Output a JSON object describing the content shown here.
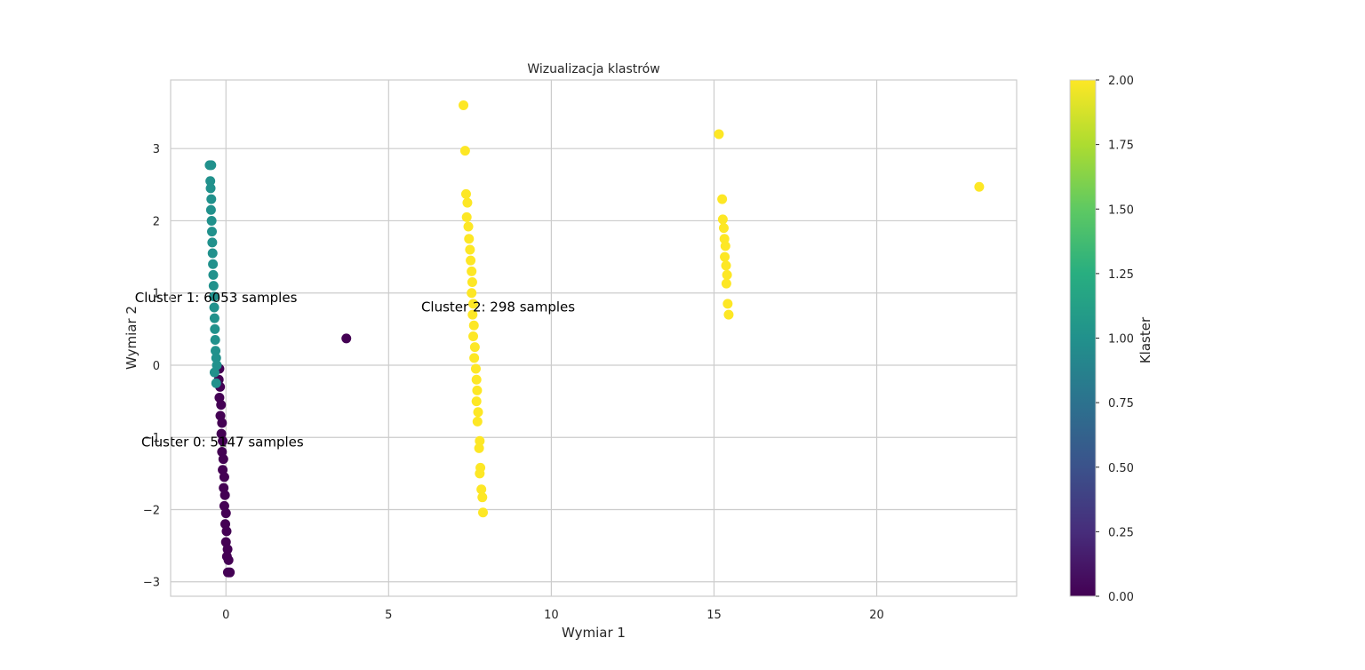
{
  "chart_data": {
    "type": "scatter",
    "title": "Wizualizacja klastrów",
    "xlabel": "Wymiar 1",
    "ylabel": "Wymiar 2",
    "xlim": [
      -1.7,
      24.3
    ],
    "ylim": [
      -3.2,
      3.95
    ],
    "x_ticks": [
      0,
      5,
      10,
      15,
      20
    ],
    "y_ticks": [
      -3,
      -2,
      -1,
      0,
      1,
      2,
      3
    ],
    "x_tick_labels": [
      "0",
      "5",
      "10",
      "15",
      "20"
    ],
    "y_tick_labels": [
      "−3",
      "−2",
      "−1",
      "0",
      "1",
      "2",
      "3"
    ],
    "grid": true,
    "colormap": "viridis",
    "colorbar": {
      "label": "Klaster",
      "min": 0.0,
      "max": 2.0,
      "ticks": [
        "0.00",
        "0.25",
        "0.50",
        "0.75",
        "1.00",
        "1.25",
        "1.50",
        "1.75",
        "2.00"
      ]
    },
    "cluster_colors": [
      "#440154",
      "#21918c",
      "#fde725"
    ],
    "annotations": [
      {
        "text": "Cluster 0: 5147 samples",
        "x": -2.6,
        "y": -1.05
      },
      {
        "text": "Cluster 1: 6053 samples",
        "x": -2.8,
        "y": 0.95
      },
      {
        "text": "Cluster 2: 298 samples",
        "x": 6.0,
        "y": 0.82
      }
    ],
    "series": [
      {
        "cluster": 0,
        "points": [
          [
            -0.25,
            -0.05
          ],
          [
            -0.2,
            -0.05
          ],
          [
            -0.22,
            -0.2
          ],
          [
            -0.18,
            -0.3
          ],
          [
            -0.2,
            -0.45
          ],
          [
            -0.15,
            -0.55
          ],
          [
            -0.17,
            -0.7
          ],
          [
            -0.12,
            -0.8
          ],
          [
            -0.14,
            -0.95
          ],
          [
            -0.1,
            -1.05
          ],
          [
            -0.12,
            -1.2
          ],
          [
            -0.08,
            -1.3
          ],
          [
            -0.1,
            -1.45
          ],
          [
            -0.05,
            -1.55
          ],
          [
            -0.07,
            -1.7
          ],
          [
            -0.03,
            -1.8
          ],
          [
            -0.05,
            -1.95
          ],
          [
            0.0,
            -2.05
          ],
          [
            -0.02,
            -2.2
          ],
          [
            0.02,
            -2.3
          ],
          [
            0.0,
            -2.45
          ],
          [
            0.05,
            -2.55
          ],
          [
            0.03,
            -2.65
          ],
          [
            0.08,
            -2.7
          ],
          [
            0.12,
            -2.87
          ],
          [
            0.06,
            -2.87
          ],
          [
            3.7,
            0.37
          ]
        ]
      },
      {
        "cluster": 1,
        "points": [
          [
            -0.5,
            2.77
          ],
          [
            -0.45,
            2.77
          ],
          [
            -0.48,
            2.55
          ],
          [
            -0.47,
            2.45
          ],
          [
            -0.45,
            2.3
          ],
          [
            -0.46,
            2.15
          ],
          [
            -0.44,
            2.0
          ],
          [
            -0.43,
            1.85
          ],
          [
            -0.42,
            1.7
          ],
          [
            -0.41,
            1.55
          ],
          [
            -0.4,
            1.4
          ],
          [
            -0.39,
            1.25
          ],
          [
            -0.38,
            1.1
          ],
          [
            -0.37,
            0.95
          ],
          [
            -0.36,
            0.8
          ],
          [
            -0.35,
            0.65
          ],
          [
            -0.34,
            0.5
          ],
          [
            -0.33,
            0.35
          ],
          [
            -0.32,
            0.2
          ],
          [
            -0.3,
            0.1
          ],
          [
            -0.28,
            0.0
          ],
          [
            -0.35,
            -0.1
          ],
          [
            -0.3,
            -0.25
          ]
        ]
      },
      {
        "cluster": 2,
        "points": [
          [
            7.3,
            3.6
          ],
          [
            7.35,
            2.97
          ],
          [
            7.38,
            2.37
          ],
          [
            7.42,
            2.25
          ],
          [
            7.4,
            2.05
          ],
          [
            7.45,
            1.92
          ],
          [
            7.47,
            1.75
          ],
          [
            7.5,
            1.6
          ],
          [
            7.52,
            1.45
          ],
          [
            7.55,
            1.3
          ],
          [
            7.57,
            1.15
          ],
          [
            7.55,
            1.0
          ],
          [
            7.6,
            0.85
          ],
          [
            7.58,
            0.7
          ],
          [
            7.62,
            0.55
          ],
          [
            7.6,
            0.4
          ],
          [
            7.65,
            0.25
          ],
          [
            7.63,
            0.1
          ],
          [
            7.68,
            -0.05
          ],
          [
            7.7,
            -0.2
          ],
          [
            7.72,
            -0.35
          ],
          [
            7.7,
            -0.5
          ],
          [
            7.75,
            -0.65
          ],
          [
            7.73,
            -0.78
          ],
          [
            7.8,
            -1.05
          ],
          [
            7.78,
            -1.15
          ],
          [
            7.82,
            -1.42
          ],
          [
            7.8,
            -1.5
          ],
          [
            7.85,
            -1.72
          ],
          [
            7.88,
            -1.83
          ],
          [
            7.9,
            -2.04
          ],
          [
            15.15,
            3.2
          ],
          [
            15.25,
            2.3
          ],
          [
            15.27,
            2.02
          ],
          [
            15.3,
            1.9
          ],
          [
            15.32,
            1.75
          ],
          [
            15.35,
            1.65
          ],
          [
            15.33,
            1.5
          ],
          [
            15.37,
            1.38
          ],
          [
            15.4,
            1.25
          ],
          [
            15.38,
            1.13
          ],
          [
            15.42,
            0.85
          ],
          [
            15.45,
            0.7
          ],
          [
            23.15,
            2.47
          ]
        ]
      }
    ]
  }
}
